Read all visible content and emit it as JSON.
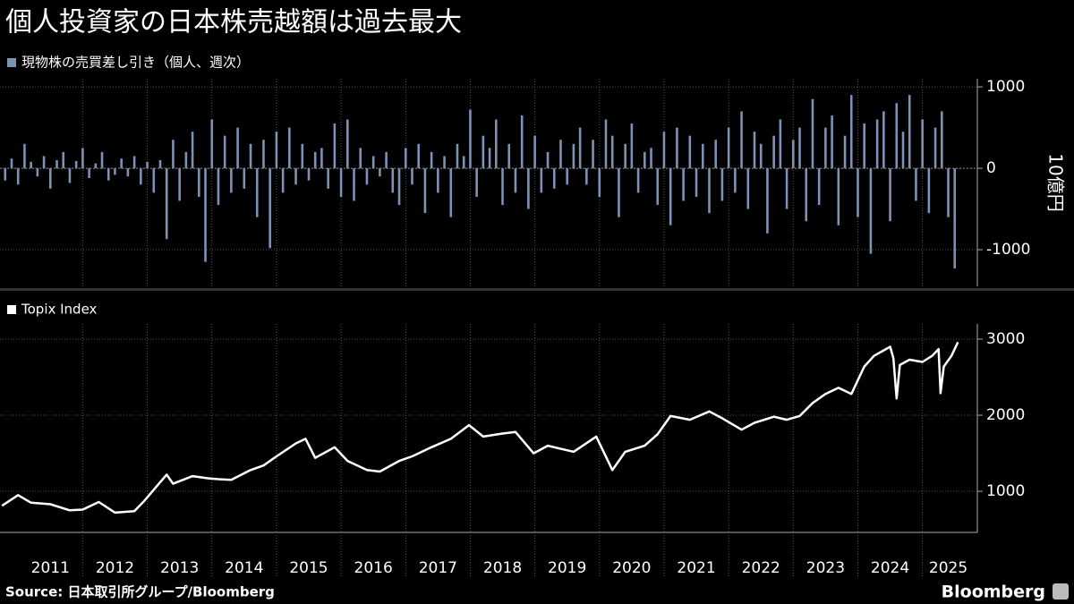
{
  "title": "個人投資家の日本株売越額は過去最大",
  "source": "Source: 日本取引所グループ/Bloomberg",
  "branding": "Bloomberg",
  "chart_data": [
    {
      "type": "bar",
      "ylabel": "10億円",
      "xlim": [
        2010.72,
        2025.85
      ],
      "xgrid": [
        2012,
        2013,
        2014,
        2015,
        2016,
        2017,
        2018,
        2019,
        2020,
        2021,
        2022,
        2023,
        2024,
        2025
      ],
      "ylim": [
        -1450,
        1100
      ],
      "yticks": [
        -1000,
        0,
        1000
      ],
      "x": [
        2010.8,
        2010.9,
        2011.0,
        2011.1,
        2011.2,
        2011.3,
        2011.4,
        2011.5,
        2011.6,
        2011.7,
        2011.8,
        2011.9,
        2012.0,
        2012.1,
        2012.2,
        2012.3,
        2012.4,
        2012.5,
        2012.6,
        2012.7,
        2012.8,
        2012.9,
        2013.0,
        2013.1,
        2013.2,
        2013.3,
        2013.4,
        2013.5,
        2013.6,
        2013.7,
        2013.8,
        2013.9,
        2014.0,
        2014.1,
        2014.2,
        2014.3,
        2014.4,
        2014.5,
        2014.6,
        2014.7,
        2014.8,
        2014.9,
        2015.0,
        2015.1,
        2015.2,
        2015.3,
        2015.4,
        2015.5,
        2015.6,
        2015.7,
        2015.8,
        2015.9,
        2016.0,
        2016.1,
        2016.2,
        2016.3,
        2016.4,
        2016.5,
        2016.6,
        2016.7,
        2016.8,
        2016.9,
        2017.0,
        2017.1,
        2017.2,
        2017.3,
        2017.4,
        2017.5,
        2017.6,
        2017.7,
        2017.8,
        2017.9,
        2018.0,
        2018.1,
        2018.2,
        2018.3,
        2018.4,
        2018.5,
        2018.6,
        2018.7,
        2018.8,
        2018.9,
        2019.0,
        2019.1,
        2019.2,
        2019.3,
        2019.4,
        2019.5,
        2019.6,
        2019.7,
        2019.8,
        2019.9,
        2020.0,
        2020.1,
        2020.2,
        2020.3,
        2020.4,
        2020.5,
        2020.6,
        2020.7,
        2020.8,
        2020.9,
        2021.0,
        2021.1,
        2021.2,
        2021.3,
        2021.4,
        2021.5,
        2021.6,
        2021.7,
        2021.8,
        2021.9,
        2022.0,
        2022.1,
        2022.2,
        2022.3,
        2022.4,
        2022.5,
        2022.6,
        2022.7,
        2022.8,
        2022.9,
        2023.0,
        2023.1,
        2023.2,
        2023.3,
        2023.4,
        2023.5,
        2023.6,
        2023.7,
        2023.8,
        2023.9,
        2024.0,
        2024.1,
        2024.2,
        2024.3,
        2024.4,
        2024.5,
        2024.6,
        2024.7,
        2024.8,
        2024.9,
        2025.0,
        2025.1,
        2025.2,
        2025.3,
        2025.4,
        2025.5
      ],
      "series": [
        {
          "name": "現物株の売買差し引き（個人、週次）",
          "color": "#7d92b5",
          "values": [
            -150,
            120,
            -200,
            300,
            80,
            -100,
            150,
            -250,
            100,
            200,
            -180,
            90,
            250,
            -120,
            60,
            200,
            -150,
            -80,
            120,
            -100,
            150,
            -200,
            80,
            -300,
            100,
            -870,
            350,
            -400,
            200,
            450,
            -350,
            -1150,
            600,
            -450,
            400,
            -300,
            500,
            -250,
            300,
            -600,
            350,
            -980,
            450,
            -300,
            500,
            -200,
            300,
            -150,
            200,
            250,
            -250,
            550,
            -350,
            600,
            -400,
            250,
            -200,
            150,
            -100,
            200,
            -300,
            -450,
            250,
            -200,
            300,
            -550,
            200,
            -300,
            150,
            -600,
            300,
            150,
            720,
            -350,
            400,
            250,
            600,
            -450,
            300,
            -300,
            650,
            -500,
            400,
            -300,
            200,
            -250,
            350,
            -200,
            300,
            500,
            -200,
            350,
            -350,
            600,
            400,
            -600,
            300,
            550,
            -300,
            200,
            250,
            -450,
            450,
            -700,
            500,
            -400,
            400,
            -350,
            300,
            -550,
            350,
            -400,
            500,
            -300,
            700,
            -500,
            450,
            300,
            -800,
            400,
            600,
            -500,
            350,
            500,
            -650,
            850,
            -450,
            500,
            650,
            -700,
            400,
            900,
            -600,
            550,
            -1050,
            600,
            700,
            -650,
            800,
            450,
            900,
            -400,
            600,
            -550,
            500,
            700,
            -600,
            -1230
          ]
        }
      ]
    },
    {
      "type": "line",
      "xlim": [
        2010.72,
        2025.85
      ],
      "xgrid": [
        2012,
        2013,
        2014,
        2015,
        2016,
        2017,
        2018,
        2019,
        2020,
        2021,
        2022,
        2023,
        2024,
        2025
      ],
      "xticks": [
        {
          "value": 2011.5,
          "label": "2011"
        },
        {
          "value": 2012.5,
          "label": "2012"
        },
        {
          "value": 2013.5,
          "label": "2013"
        },
        {
          "value": 2014.5,
          "label": "2014"
        },
        {
          "value": 2015.5,
          "label": "2015"
        },
        {
          "value": 2016.5,
          "label": "2016"
        },
        {
          "value": 2017.5,
          "label": "2017"
        },
        {
          "value": 2018.5,
          "label": "2018"
        },
        {
          "value": 2019.5,
          "label": "2019"
        },
        {
          "value": 2020.5,
          "label": "2020"
        },
        {
          "value": 2021.5,
          "label": "2021"
        },
        {
          "value": 2022.5,
          "label": "2022"
        },
        {
          "value": 2023.5,
          "label": "2023"
        },
        {
          "value": 2024.5,
          "label": "2024"
        },
        {
          "value": 2025.4,
          "label": "2025"
        }
      ],
      "ylim": [
        460,
        3200
      ],
      "yticks": [
        1000,
        2000,
        3000
      ],
      "x": [
        2010.75,
        2011.0,
        2011.2,
        2011.5,
        2011.8,
        2012.0,
        2012.25,
        2012.5,
        2012.8,
        2012.95,
        2013.3,
        2013.4,
        2013.7,
        2013.95,
        2014.1,
        2014.3,
        2014.6,
        2014.8,
        2015.0,
        2015.3,
        2015.45,
        2015.6,
        2015.9,
        2016.1,
        2016.4,
        2016.6,
        2016.9,
        2017.1,
        2017.4,
        2017.7,
        2017.98,
        2018.2,
        2018.5,
        2018.7,
        2018.98,
        2019.2,
        2019.6,
        2019.95,
        2020.2,
        2020.4,
        2020.7,
        2020.9,
        2021.1,
        2021.4,
        2021.7,
        2021.9,
        2022.2,
        2022.4,
        2022.7,
        2022.9,
        2023.1,
        2023.3,
        2023.5,
        2023.7,
        2023.9,
        2024.1,
        2024.25,
        2024.5,
        2024.55,
        2024.6,
        2024.65,
        2024.8,
        2025.0,
        2025.15,
        2025.25,
        2025.28,
        2025.33,
        2025.45,
        2025.55
      ],
      "series": [
        {
          "name": "Topix Index",
          "color": "#ffffff",
          "values": [
            810,
            950,
            850,
            830,
            750,
            760,
            860,
            720,
            740,
            870,
            1220,
            1100,
            1200,
            1170,
            1160,
            1150,
            1280,
            1340,
            1460,
            1630,
            1690,
            1440,
            1580,
            1400,
            1280,
            1260,
            1400,
            1460,
            1580,
            1690,
            1870,
            1720,
            1760,
            1780,
            1500,
            1600,
            1520,
            1720,
            1280,
            1520,
            1600,
            1750,
            1990,
            1940,
            2050,
            1960,
            1810,
            1900,
            1980,
            1940,
            1990,
            2160,
            2280,
            2360,
            2280,
            2640,
            2780,
            2900,
            2750,
            2220,
            2660,
            2730,
            2700,
            2780,
            2870,
            2290,
            2640,
            2780,
            2960
          ]
        }
      ]
    }
  ]
}
